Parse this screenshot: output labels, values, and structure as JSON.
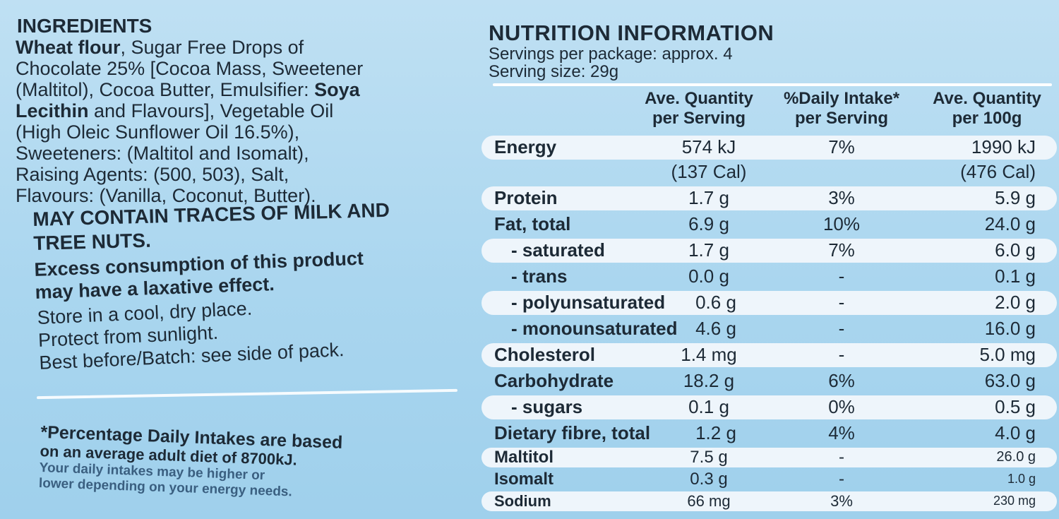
{
  "ingredients": {
    "title": "INGREDIENTS",
    "line1_bold": "Wheat flour",
    "line1_rest": ", Sugar Free Drops of",
    "line2": "Chocolate 25% [Cocoa Mass, Sweetener",
    "line3_a": "(Maltitol), Cocoa Butter, Emulsifier: ",
    "line3_bold": "Soya",
    "line4_bold": "Lecithin",
    "line4_rest": " and Flavours], Vegetable Oil",
    "line5": "(High Oleic Sunflower Oil 16.5%),",
    "line6": "Sweeteners: (Maltitol and Isomalt),",
    "line7": "Raising Agents: (500, 503), Salt,",
    "line8": "Flavours: (Vanilla, Coconut, Butter).",
    "allergen_line1": "MAY CONTAIN TRACES OF MILK AND",
    "allergen_line2": "TREE NUTS.",
    "laxative_line1": "Excess consumption of this product",
    "laxative_line2": "may have a laxative effect.",
    "storage1": "Store in a cool, dry place.",
    "storage2": "Protect from sunlight.",
    "storage3": "Best before/Batch: see side of pack."
  },
  "footnote": {
    "line1": "*Percentage Daily Intakes are based",
    "line2": "on an average adult diet of 8700kJ.",
    "line3": "Your daily intakes may be higher or",
    "line4": "lower depending on your energy needs."
  },
  "nutrition": {
    "title": "NUTRITION INFORMATION",
    "servings_per_package": "Servings per package: approx. 4",
    "serving_size": "Serving size: 29g",
    "headers": {
      "serving_l1": "Ave. Quantity",
      "serving_l2": "per Serving",
      "di_l1": "%Daily Intake*",
      "di_l2": "per Serving",
      "per100_l1": "Ave. Quantity",
      "per100_l2": "per 100g"
    },
    "energy": {
      "name": "Energy",
      "serving": "574 kJ",
      "serving2": "(137 Cal)",
      "di": "7%",
      "per100": "1990 kJ",
      "per100_2": "(476 Cal)"
    },
    "rows": [
      {
        "name": "Protein",
        "serving": "1.7 g",
        "di": "3%",
        "per100": "5.9 g"
      },
      {
        "name": "Fat, total",
        "serving": "6.9 g",
        "di": "10%",
        "per100": "24.0 g"
      },
      {
        "name": "- saturated",
        "serving": "1.7 g",
        "di": "7%",
        "per100": "6.0 g"
      },
      {
        "name": "- trans",
        "serving": "0.0 g",
        "di": "-",
        "per100": "0.1 g"
      },
      {
        "name": "- polyunsaturated",
        "serving": "0.6 g",
        "di": "-",
        "per100": "2.0 g"
      },
      {
        "name": "- monounsaturated",
        "serving": "4.6 g",
        "di": "-",
        "per100": "16.0 g"
      },
      {
        "name": "Cholesterol",
        "serving": "1.4 mg",
        "di": "-",
        "per100": "5.0 mg"
      },
      {
        "name": "Carbohydrate",
        "serving": "18.2 g",
        "di": "6%",
        "per100": "63.0 g"
      },
      {
        "name": "- sugars",
        "serving": "0.1 g",
        "di": "0%",
        "per100": "0.5 g"
      },
      {
        "name": "Dietary fibre, total",
        "serving": "1.2 g",
        "di": "4%",
        "per100": "4.0 g"
      },
      {
        "name": "Maltitol",
        "serving": "7.5 g",
        "di": "-",
        "per100": "26.0 g"
      },
      {
        "name": "Isomalt",
        "serving": "0.3 g",
        "di": "-",
        "per100": "1.0 g"
      },
      {
        "name": "Sodium",
        "serving": "66 mg",
        "di": "3%",
        "per100": "230 mg"
      }
    ]
  }
}
